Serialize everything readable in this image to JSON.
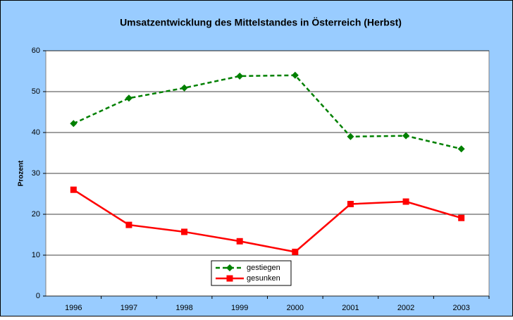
{
  "chart_data": {
    "type": "line",
    "title": "Umsatzentwicklung des Mittelstandes in Österreich (Herbst)",
    "y_label": "Prozent",
    "categories": [
      "1996",
      "1997",
      "1998",
      "1999",
      "2000",
      "2001",
      "2002",
      "2003"
    ],
    "series": [
      {
        "name": "gestiegen",
        "color": "#008000",
        "values": [
          42.2,
          48.4,
          50.9,
          53.8,
          54.0,
          39.0,
          39.2,
          36.0
        ]
      },
      {
        "name": "gesunken",
        "color": "#ff0000",
        "values": [
          26.0,
          17.4,
          15.7,
          13.4,
          10.8,
          22.5,
          23.1,
          19.1
        ]
      }
    ],
    "ylim": [
      0,
      60
    ],
    "yticks": [
      0,
      10,
      20,
      30,
      40,
      50,
      60
    ],
    "grid": true
  }
}
